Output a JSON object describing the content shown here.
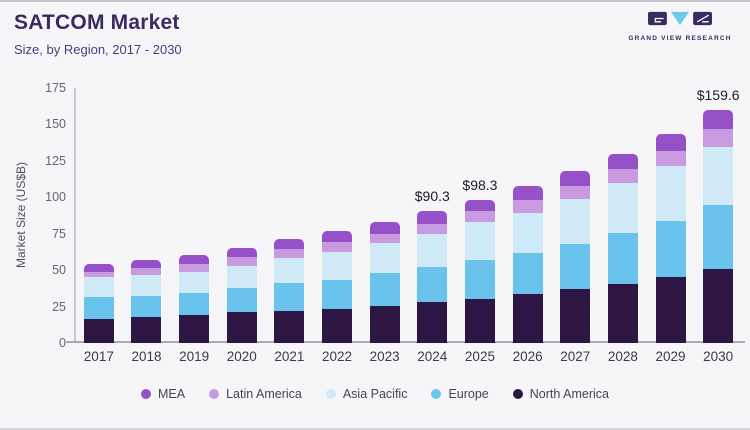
{
  "header": {
    "title": "SATCOM Market",
    "subtitle": "Size, by Region, 2017 - 2030",
    "logo": {
      "brand": "GRAND VIEW RESEARCH"
    }
  },
  "chart_data": {
    "type": "bar",
    "stacked": true,
    "title": "SATCOM Market",
    "subtitle": "Size, by Region, 2017 - 2030",
    "xlabel": "",
    "ylabel": "Market Size (US$B)",
    "ylim": [
      0,
      175
    ],
    "yticks": [
      0,
      25,
      50,
      75,
      100,
      125,
      150,
      175
    ],
    "grid": false,
    "legend_position": "bottom",
    "categories": [
      "2017",
      "2018",
      "2019",
      "2020",
      "2021",
      "2022",
      "2023",
      "2024",
      "2025",
      "2026",
      "2027",
      "2028",
      "2029",
      "2030"
    ],
    "series": [
      {
        "name": "North America",
        "color": "#2d1644",
        "values": [
          16.5,
          18.0,
          19.5,
          21.0,
          22.0,
          23.5,
          25.5,
          28.0,
          30.0,
          33.5,
          37.0,
          40.5,
          45.0,
          50.5
        ]
      },
      {
        "name": "Europe",
        "color": "#6ac3ec",
        "values": [
          15.0,
          14.5,
          15.0,
          17.0,
          19.5,
          20.0,
          22.5,
          24.0,
          27.0,
          28.0,
          31.0,
          35.0,
          39.0,
          44.0
        ]
      },
      {
        "name": "Asia Pacific",
        "color": "#cfe9f7",
        "values": [
          13.5,
          14.0,
          14.5,
          15.0,
          17.0,
          19.0,
          20.5,
          22.8,
          26.3,
          27.5,
          31.0,
          34.0,
          37.5,
          40.0
        ]
      },
      {
        "name": "Latin America",
        "color": "#c89be0",
        "values": [
          4.0,
          5.0,
          5.5,
          6.0,
          6.0,
          6.5,
          6.5,
          7.0,
          7.0,
          9.0,
          9.0,
          10.0,
          10.5,
          12.3
        ]
      },
      {
        "name": "MEA",
        "color": "#9650c8",
        "values": [
          5.0,
          5.5,
          6.0,
          6.5,
          7.0,
          8.0,
          8.0,
          8.5,
          8.0,
          9.5,
          10.0,
          10.5,
          11.5,
          12.8
        ]
      }
    ],
    "totals": [
      54.0,
      57.0,
      60.5,
      65.5,
      71.5,
      77.0,
      83.0,
      90.3,
      98.3,
      107.5,
      118.0,
      130.0,
      143.5,
      159.6
    ],
    "annotations": [
      {
        "category": "2024",
        "text": "$90.3"
      },
      {
        "category": "2025",
        "text": "$98.3"
      },
      {
        "category": "2030",
        "text": "$159.6"
      }
    ],
    "legend": [
      "MEA",
      "Latin America",
      "Asia Pacific",
      "Europe",
      "North America"
    ]
  }
}
